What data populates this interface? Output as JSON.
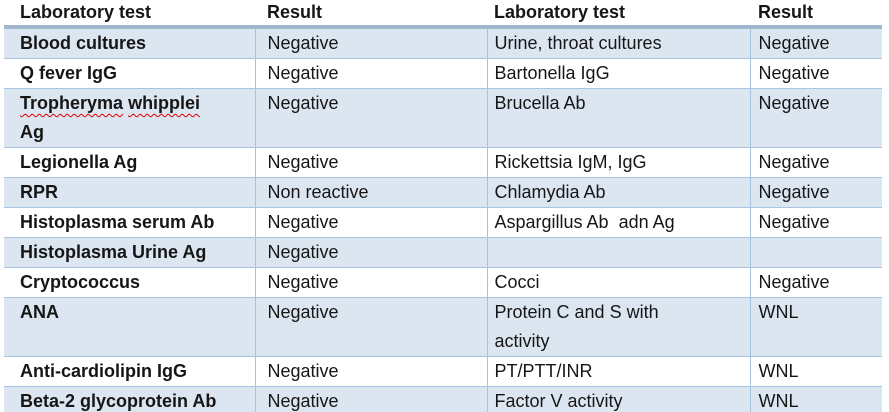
{
  "table": {
    "headers": [
      "Laboratory test",
      "Result",
      "Laboratory test",
      "Result"
    ],
    "style": {
      "shaded_row_color": "#dce6f1",
      "grid_line_color": "#a8c3df",
      "accent_border_color": "#9eb6ce",
      "text_color": "#161616",
      "misspelling_underline_color": "#e00000"
    },
    "rows": [
      {
        "shaded": true,
        "cells": [
          "Blood cultures",
          "Negative",
          "Urine, throat cultures",
          "Negative"
        ]
      },
      {
        "shaded": false,
        "cells": [
          "Q fever IgG",
          "Negative",
          "Bartonella IgG",
          "Negative"
        ]
      },
      {
        "shaded": true,
        "cells": [
          "Tropheryma whipplei\nAg",
          "Negative",
          "Brucella Ab",
          "Negative"
        ],
        "misspelled_words": [
          "Tropheryma",
          "whipplei"
        ]
      },
      {
        "shaded": false,
        "cells": [
          "Legionella Ag",
          "Negative",
          "Rickettsia IgM, IgG",
          "Negative"
        ]
      },
      {
        "shaded": true,
        "cells": [
          "RPR",
          "Non reactive",
          "Chlamydia Ab",
          "Negative"
        ]
      },
      {
        "shaded": false,
        "cells": [
          "Histoplasma serum Ab",
          "Negative",
          "Aspargillus Ab  adn Ag",
          "Negative"
        ]
      },
      {
        "shaded": true,
        "cells": [
          "Histoplasma Urine Ag",
          "Negative",
          "",
          ""
        ]
      },
      {
        "shaded": false,
        "cells": [
          "Cryptococcus",
          "Negative",
          "Cocci",
          "Negative"
        ]
      },
      {
        "shaded": true,
        "cells": [
          "ANA",
          "Negative",
          "Protein C and S with\nactivity",
          "WNL"
        ]
      },
      {
        "shaded": false,
        "cells": [
          "Anti-cardiolipin IgG",
          "Negative",
          "PT/PTT/INR",
          "WNL"
        ]
      },
      {
        "shaded": true,
        "cells": [
          "Beta-2 glycoprotein Ab",
          "Negative",
          "Factor V activity",
          "WNL"
        ]
      }
    ]
  }
}
